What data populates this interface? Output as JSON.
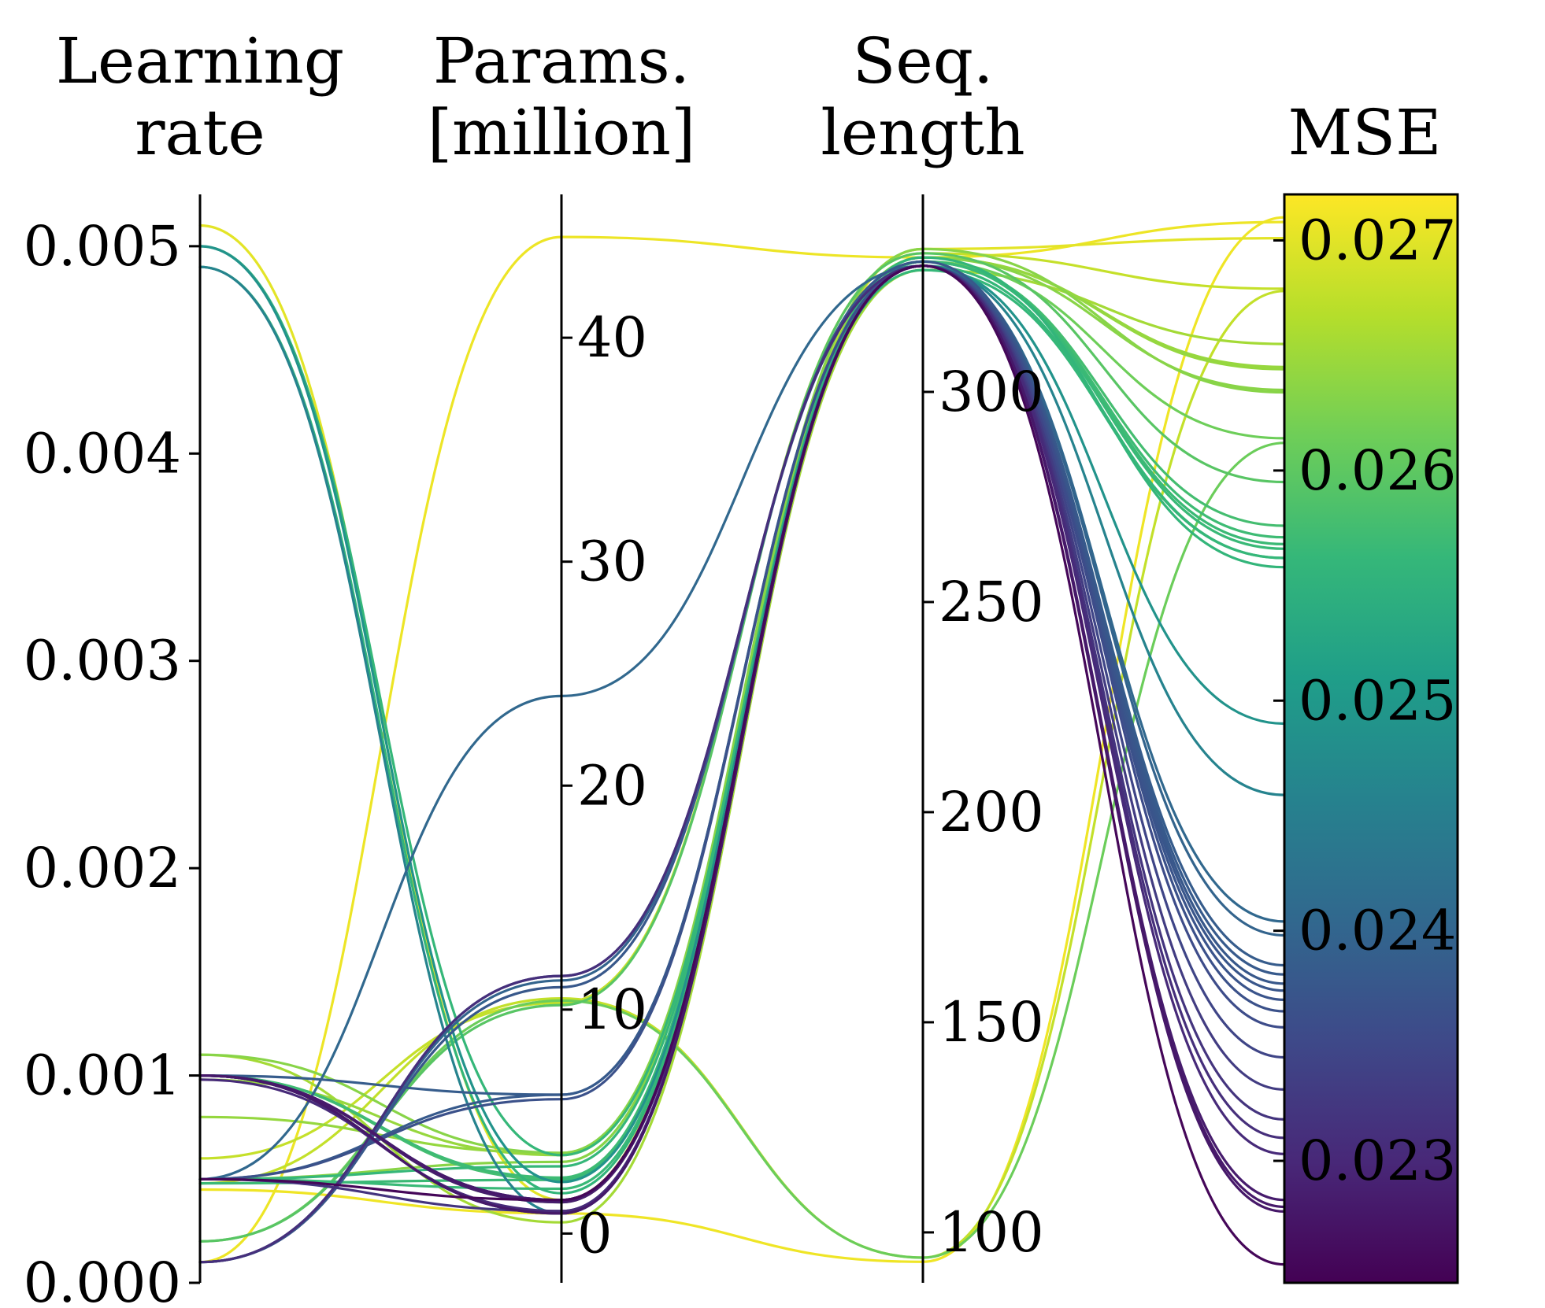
{
  "chart_data": {
    "type": "parallel_coordinates",
    "colormap": "viridis",
    "colormap_stops": [
      "#440154",
      "#482878",
      "#3e4989",
      "#31688e",
      "#26828e",
      "#1f9e89",
      "#35b779",
      "#6ece58",
      "#b5de2b",
      "#fde725"
    ],
    "axes": [
      {
        "key": "lr",
        "title_lines": [
          "Learning",
          "rate"
        ],
        "range": [
          0,
          0.00525
        ],
        "ticks": [
          0,
          0.001,
          0.002,
          0.003,
          0.004,
          0.005
        ],
        "tick_labels": [
          "0.000",
          "0.001",
          "0.002",
          "0.003",
          "0.004",
          "0.005"
        ],
        "tick_side": "left"
      },
      {
        "key": "params",
        "title_lines": [
          "Params.",
          "[million]"
        ],
        "range": [
          -2.2,
          46.4
        ],
        "ticks": [
          0,
          10,
          20,
          30,
          40
        ],
        "tick_labels": [
          "0",
          "10",
          "20",
          "30",
          "40"
        ],
        "tick_side": "right"
      },
      {
        "key": "seq",
        "title_lines": [
          "Seq.",
          "length"
        ],
        "range": [
          88,
          347
        ],
        "ticks": [
          100,
          150,
          200,
          250,
          300
        ],
        "tick_labels": [
          "100",
          "150",
          "200",
          "250",
          "300"
        ],
        "tick_side": "right"
      },
      {
        "key": "mse",
        "title_lines": [
          "MSE"
        ],
        "range": [
          0.02247,
          0.0272
        ],
        "ticks": [
          0.023,
          0.024,
          0.025,
          0.026,
          0.027
        ],
        "tick_labels": [
          "0.023",
          "0.024",
          "0.025",
          "0.026",
          "0.027"
        ],
        "tick_side": "right",
        "colorbar": true
      }
    ],
    "series": [
      {
        "values": [
          0.0001,
          44.5,
          332,
          0.02708
        ]
      },
      {
        "values": [
          0.00045,
          0.9,
          93,
          0.0271
        ]
      },
      {
        "values": [
          0.0051,
          1.5,
          334,
          0.02701
        ]
      },
      {
        "values": [
          0.0006,
          10.3,
          333,
          0.02679
        ]
      },
      {
        "values": [
          0.00048,
          10.5,
          94,
          0.02678
        ]
      },
      {
        "values": [
          0.0011,
          0.5,
          329,
          0.02655
        ]
      },
      {
        "values": [
          0.0011,
          3.6,
          334,
          0.02634
        ]
      },
      {
        "values": [
          0.00098,
          3.5,
          332,
          0.02645
        ]
      },
      {
        "values": [
          0.0008,
          3.6,
          332,
          0.02644
        ]
      },
      {
        "values": [
          0.0005,
          3.2,
          332,
          0.02635
        ]
      },
      {
        "values": [
          0.0002,
          10.4,
          94,
          0.02612
        ]
      },
      {
        "values": [
          0.001,
          1.4,
          331,
          0.02614
        ]
      },
      {
        "values": [
          0.0002,
          10.2,
          333,
          0.02595
        ]
      },
      {
        "values": [
          0.001,
          2.4,
          331,
          0.02576
        ]
      },
      {
        "values": [
          0.001,
          2.5,
          331,
          0.02571
        ]
      },
      {
        "values": [
          0.0005,
          2.0,
          331,
          0.02566
        ]
      },
      {
        "values": [
          0.00048,
          2.4,
          331,
          0.02568
        ]
      },
      {
        "values": [
          0.0005,
          3.0,
          330,
          0.02562
        ]
      },
      {
        "values": [
          0.005,
          3.5,
          329,
          0.02562
        ]
      },
      {
        "values": [
          0.0049,
          1.8,
          332,
          0.02558
        ]
      },
      {
        "values": [
          0.005,
          2.3,
          330,
          0.0249
        ]
      },
      {
        "values": [
          0.0049,
          0.9,
          330,
          0.02459
        ]
      },
      {
        "values": [
          0.0005,
          24.0,
          330,
          0.02404
        ]
      },
      {
        "values": [
          0.0001,
          11.3,
          330,
          0.02398
        ]
      },
      {
        "values": [
          0.001,
          6.2,
          330,
          0.02385
        ]
      },
      {
        "values": [
          0.0005,
          6.2,
          330,
          0.02381
        ]
      },
      {
        "values": [
          0.0001,
          11.0,
          331,
          0.02377
        ]
      },
      {
        "values": [
          0.001,
          1.5,
          330,
          0.02374
        ]
      },
      {
        "values": [
          0.001,
          0.9,
          330,
          0.0237
        ]
      },
      {
        "values": [
          0.0005,
          6.0,
          330,
          0.02365
        ]
      },
      {
        "values": [
          0.001,
          0.9,
          330,
          0.02358
        ]
      },
      {
        "values": [
          0.0001,
          11.5,
          330,
          0.02345
        ]
      },
      {
        "values": [
          0.001,
          1.5,
          330,
          0.02331
        ]
      },
      {
        "values": [
          0.0005,
          1.0,
          330,
          0.02318
        ]
      },
      {
        "values": [
          0.0001,
          11.5,
          330,
          0.0231
        ]
      },
      {
        "values": [
          0.00098,
          1.0,
          330,
          0.02303
        ]
      },
      {
        "values": [
          0.001,
          1.4,
          330,
          0.02283
        ]
      },
      {
        "values": [
          0.001,
          1.5,
          330,
          0.0228
        ]
      },
      {
        "values": [
          0.001,
          0.9,
          330,
          0.02278
        ]
      },
      {
        "values": [
          0.0005,
          1.5,
          330,
          0.02255
        ]
      }
    ]
  }
}
